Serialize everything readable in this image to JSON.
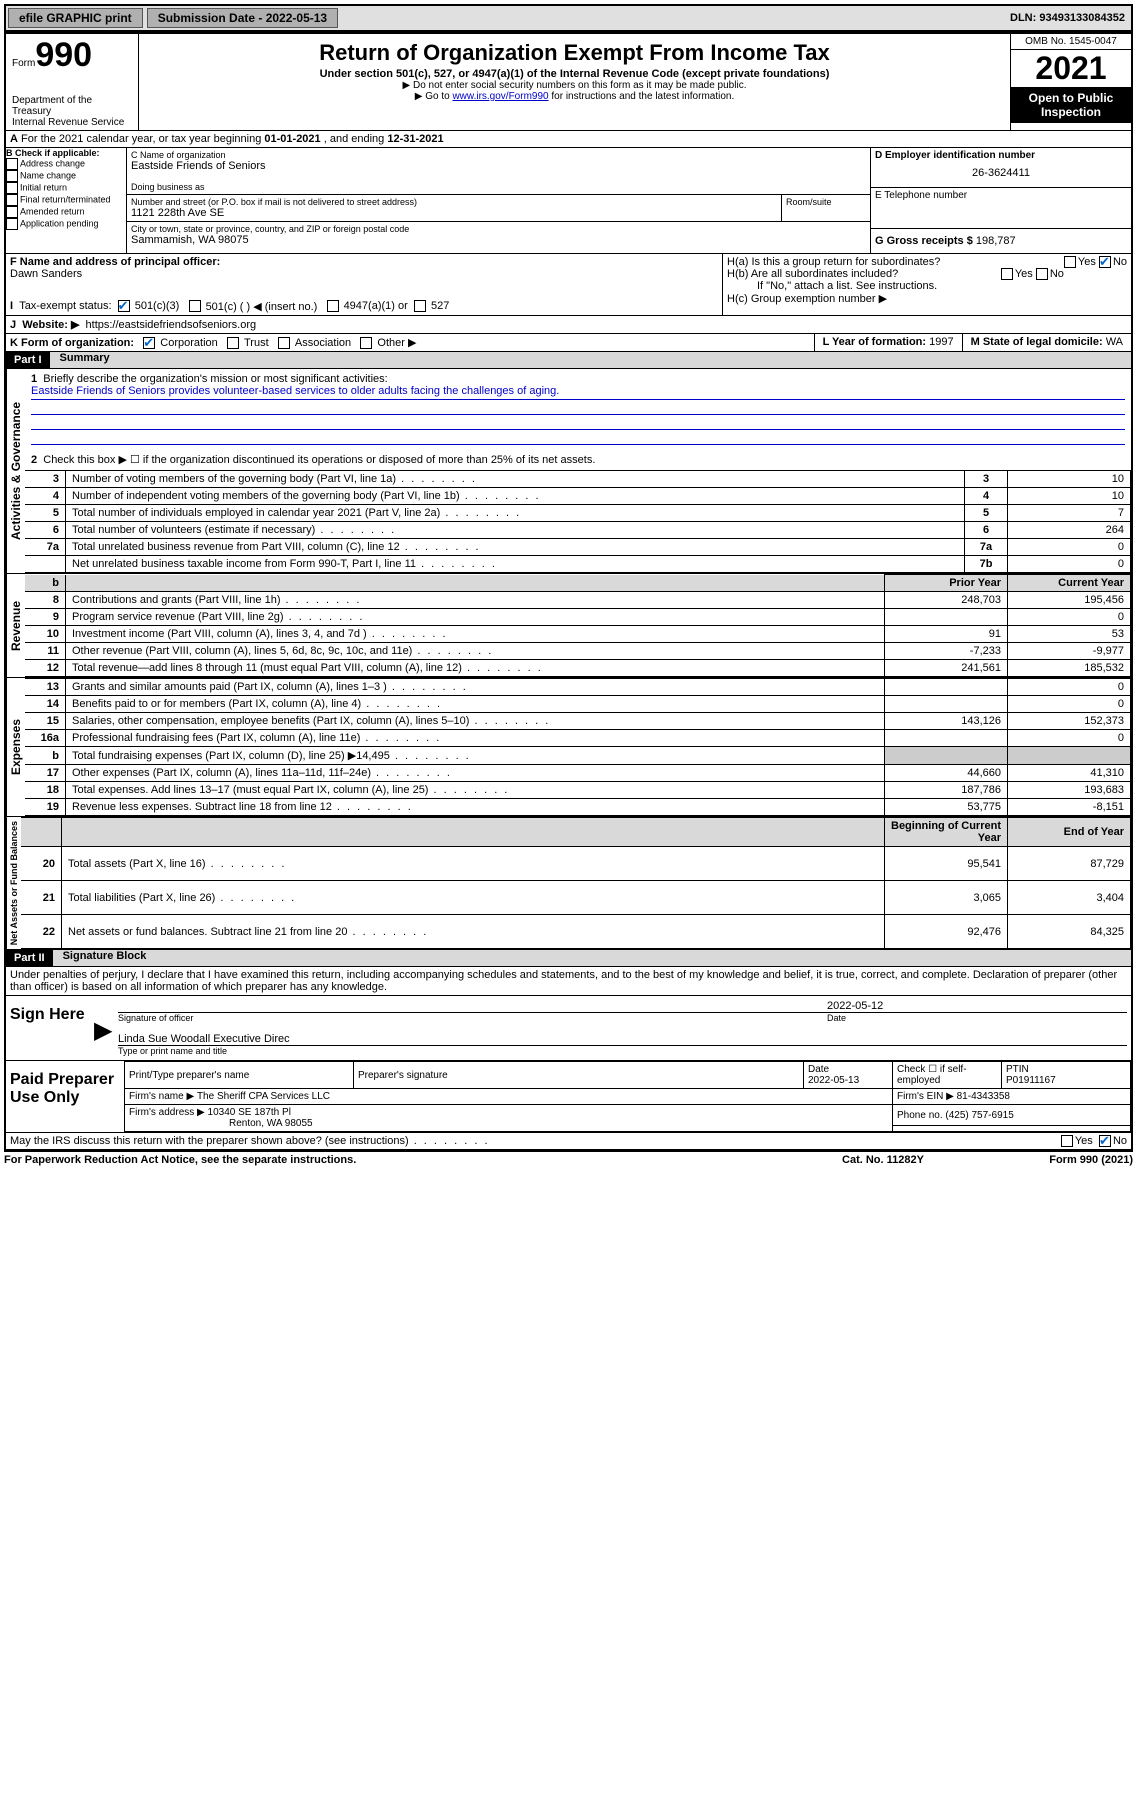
{
  "topbar": {
    "efile": "efile GRAPHIC print",
    "sub_label": "Submission Date - 2022-05-13",
    "dln": "DLN: 93493133084352"
  },
  "header": {
    "form_word": "Form",
    "form_num": "990",
    "dept": "Department of the Treasury",
    "irs": "Internal Revenue Service",
    "title": "Return of Organization Exempt From Income Tax",
    "sub1": "Under section 501(c), 527, or 4947(a)(1) of the Internal Revenue Code (except private foundations)",
    "sub2": "▶ Do not enter social security numbers on this form as it may be made public.",
    "sub3_pre": "▶ Go to ",
    "sub3_link": "www.irs.gov/Form990",
    "sub3_post": " for instructions and the latest information.",
    "omb": "OMB No. 1545-0047",
    "year": "2021",
    "open1": "Open to Public",
    "open2": "Inspection"
  },
  "lineA": {
    "text_pre": "For the 2021 calendar year, or tax year beginning ",
    "begin": "01-01-2021",
    "mid": " , and ending ",
    "end": "12-31-2021"
  },
  "boxB": {
    "label": "B Check if applicable:",
    "addr": "Address change",
    "name": "Name change",
    "initial": "Initial return",
    "final": "Final return/terminated",
    "amended": "Amended return",
    "app": "Application pending"
  },
  "boxC": {
    "label": "C Name of organization",
    "org": "Eastside Friends of Seniors",
    "dba_label": "Doing business as",
    "street_label": "Number and street (or P.O. box if mail is not delivered to street address)",
    "room_label": "Room/suite",
    "street": "1121 228th Ave SE",
    "city_label": "City or town, state or province, country, and ZIP or foreign postal code",
    "city": "Sammamish, WA  98075"
  },
  "boxD": {
    "label": "D Employer identification number",
    "ein": "26-3624411"
  },
  "boxE": {
    "label": "E Telephone number"
  },
  "boxG": {
    "label": "G Gross receipts $ ",
    "val": "198,787"
  },
  "boxF": {
    "label": "F Name and address of principal officer:",
    "name": "Dawn Sanders"
  },
  "boxH": {
    "a": "H(a)  Is this a group return for subordinates?",
    "b": "H(b)  Are all subordinates included?",
    "b_note": "If \"No,\" attach a list. See instructions.",
    "c": "H(c)  Group exemption number ▶",
    "yes": "Yes",
    "no": "No"
  },
  "boxI": {
    "label": "Tax-exempt status:",
    "c3": "501(c)(3)",
    "c": "501(c) (   ) ◀ (insert no.)",
    "a1": "4947(a)(1) or",
    "s527": "527"
  },
  "boxJ": {
    "label": "Website: ▶",
    "val": "https://eastsidefriendsofseniors.org"
  },
  "boxK": {
    "label": "K Form of organization:",
    "corp": "Corporation",
    "trust": "Trust",
    "assoc": "Association",
    "other": "Other ▶"
  },
  "boxL": {
    "label": "L Year of formation: ",
    "val": "1997"
  },
  "boxM": {
    "label": "M State of legal domicile: ",
    "val": "WA"
  },
  "part1": {
    "header": "Part I",
    "title": "Summary",
    "line1_label": "Briefly describe the organization's mission or most significant activities:",
    "line1_val": "Eastside Friends of Seniors provides volunteer-based services to older adults facing the challenges of aging.",
    "line2": "Check this box ▶ ☐  if the organization discontinued its operations or disposed of more than 25% of its net assets.",
    "sections": {
      "gov": "Activities & Governance",
      "rev": "Revenue",
      "exp": "Expenses",
      "net": "Net Assets or Fund Balances"
    },
    "col_prior": "Prior Year",
    "col_current": "Current Year",
    "col_begin": "Beginning of Current Year",
    "col_end": "End of Year",
    "rows_gov": [
      {
        "n": "3",
        "t": "Number of voting members of the governing body (Part VI, line 1a)",
        "box": "3",
        "v": "10"
      },
      {
        "n": "4",
        "t": "Number of independent voting members of the governing body (Part VI, line 1b)",
        "box": "4",
        "v": "10"
      },
      {
        "n": "5",
        "t": "Total number of individuals employed in calendar year 2021 (Part V, line 2a)",
        "box": "5",
        "v": "7"
      },
      {
        "n": "6",
        "t": "Total number of volunteers (estimate if necessary)",
        "box": "6",
        "v": "264"
      },
      {
        "n": "7a",
        "t": "Total unrelated business revenue from Part VIII, column (C), line 12",
        "box": "7a",
        "v": "0"
      },
      {
        "n": "",
        "t": "Net unrelated business taxable income from Form 990-T, Part I, line 11",
        "box": "7b",
        "v": "0"
      }
    ],
    "rows_rev": [
      {
        "n": "8",
        "t": "Contributions and grants (Part VIII, line 1h)",
        "p": "248,703",
        "c": "195,456"
      },
      {
        "n": "9",
        "t": "Program service revenue (Part VIII, line 2g)",
        "p": "",
        "c": "0"
      },
      {
        "n": "10",
        "t": "Investment income (Part VIII, column (A), lines 3, 4, and 7d )",
        "p": "91",
        "c": "53"
      },
      {
        "n": "11",
        "t": "Other revenue (Part VIII, column (A), lines 5, 6d, 8c, 9c, 10c, and 11e)",
        "p": "-7,233",
        "c": "-9,977"
      },
      {
        "n": "12",
        "t": "Total revenue—add lines 8 through 11 (must equal Part VIII, column (A), line 12)",
        "p": "241,561",
        "c": "185,532"
      }
    ],
    "rows_exp": [
      {
        "n": "13",
        "t": "Grants and similar amounts paid (Part IX, column (A), lines 1–3 )",
        "p": "",
        "c": "0"
      },
      {
        "n": "14",
        "t": "Benefits paid to or for members (Part IX, column (A), line 4)",
        "p": "",
        "c": "0"
      },
      {
        "n": "15",
        "t": "Salaries, other compensation, employee benefits (Part IX, column (A), lines 5–10)",
        "p": "143,126",
        "c": "152,373"
      },
      {
        "n": "16a",
        "t": "Professional fundraising fees (Part IX, column (A), line 11e)",
        "p": "",
        "c": "0"
      },
      {
        "n": "b",
        "t": "Total fundraising expenses (Part IX, column (D), line 25) ▶14,495",
        "p": "SHADE",
        "c": "SHADE"
      },
      {
        "n": "17",
        "t": "Other expenses (Part IX, column (A), lines 11a–11d, 11f–24e)",
        "p": "44,660",
        "c": "41,310"
      },
      {
        "n": "18",
        "t": "Total expenses. Add lines 13–17 (must equal Part IX, column (A), line 25)",
        "p": "187,786",
        "c": "193,683"
      },
      {
        "n": "19",
        "t": "Revenue less expenses. Subtract line 18 from line 12",
        "p": "53,775",
        "c": "-8,151"
      }
    ],
    "rows_net": [
      {
        "n": "20",
        "t": "Total assets (Part X, line 16)",
        "p": "95,541",
        "c": "87,729"
      },
      {
        "n": "21",
        "t": "Total liabilities (Part X, line 26)",
        "p": "3,065",
        "c": "3,404"
      },
      {
        "n": "22",
        "t": "Net assets or fund balances. Subtract line 21 from line 20",
        "p": "92,476",
        "c": "84,325"
      }
    ]
  },
  "part2": {
    "header": "Part II",
    "title": "Signature Block",
    "decl": "Under penalties of perjury, I declare that I have examined this return, including accompanying schedules and statements, and to the best of my knowledge and belief, it is true, correct, and complete. Declaration of preparer (other than officer) is based on all information of which preparer has any knowledge.",
    "sign_here": "Sign Here",
    "sig_officer": "Signature of officer",
    "sig_date": "Date",
    "sig_date_val": "2022-05-12",
    "sig_name": "Linda Sue Woodall  Executive Direc",
    "sig_name_label": "Type or print name and title",
    "paid": "Paid Preparer Use Only",
    "prep_name_label": "Print/Type preparer's name",
    "prep_sig_label": "Preparer's signature",
    "prep_date_label": "Date",
    "prep_date": "2022-05-13",
    "prep_check": "Check ☐ if self-employed",
    "ptin_label": "PTIN",
    "ptin": "P01911167",
    "firm_name_label": "Firm's name    ▶",
    "firm_name": "The Sheriff CPA Services LLC",
    "firm_ein_label": "Firm's EIN ▶",
    "firm_ein": "81-4343358",
    "firm_addr_label": "Firm's address ▶",
    "firm_addr1": "10340 SE 187th Pl",
    "firm_addr2": "Renton, WA  98055",
    "phone_label": "Phone no. ",
    "phone": "(425) 757-6915",
    "discuss": "May the IRS discuss this return with the preparer shown above? (see instructions)",
    "yes": "Yes",
    "no": "No"
  },
  "footer": {
    "left": "For Paperwork Reduction Act Notice, see the separate instructions.",
    "mid": "Cat. No. 11282Y",
    "right_pre": "Form ",
    "right_num": "990",
    "right_post": " (2021)"
  }
}
